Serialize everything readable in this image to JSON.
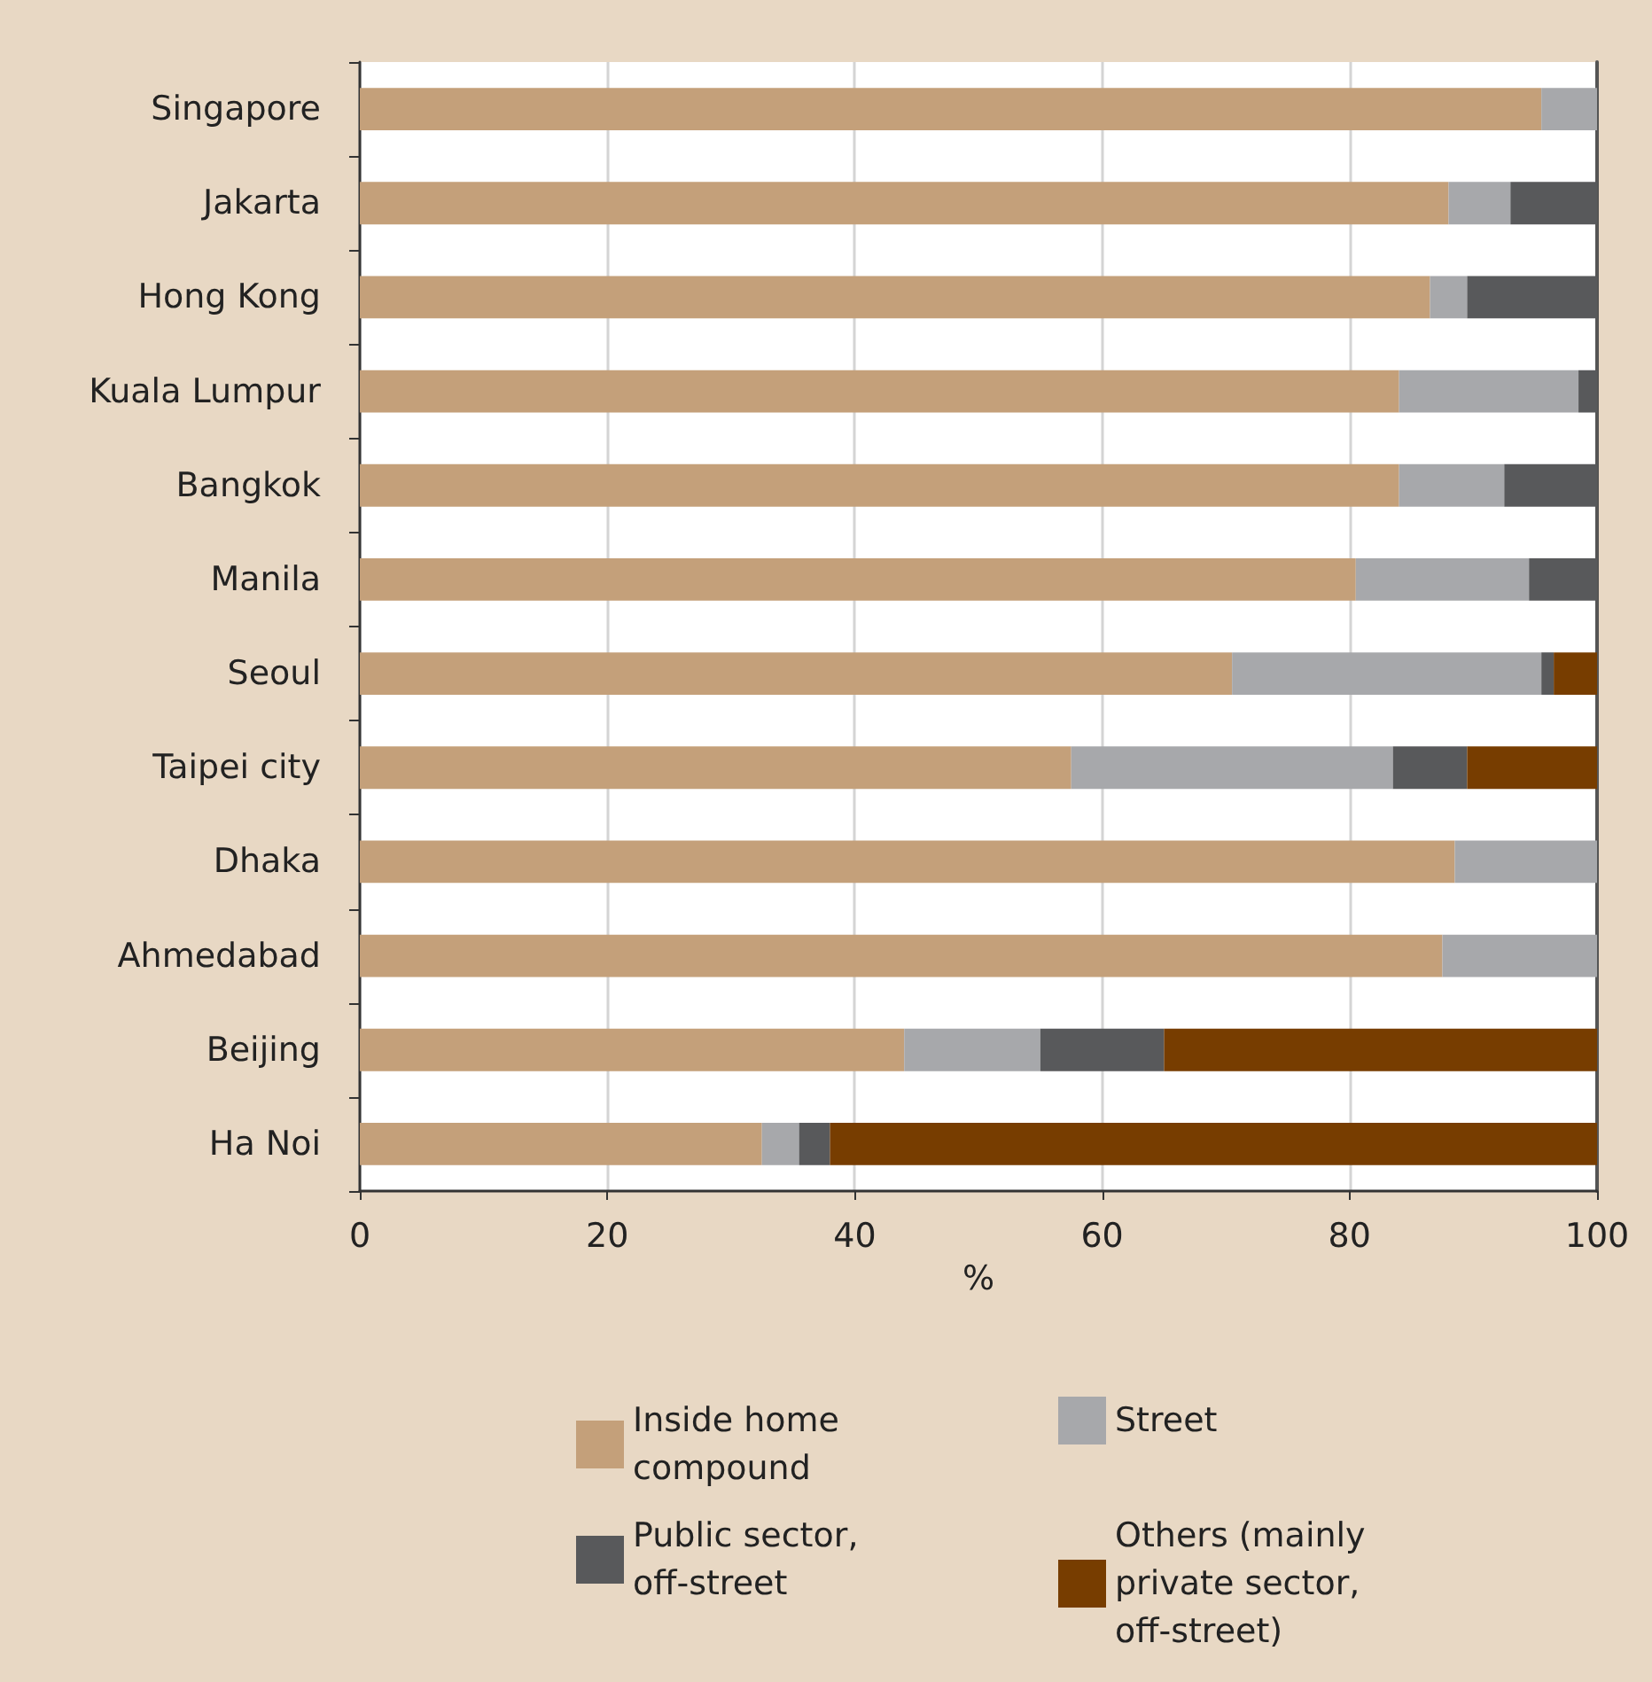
{
  "chart_data": {
    "type": "bar",
    "orientation": "horizontal",
    "stacked": true,
    "xlabel": "%",
    "categories": [
      "Singapore",
      "Jakarta",
      "Hong Kong",
      "Kuala Lumpur",
      "Bangkok",
      "Manila",
      "Seoul",
      "Taipei city",
      "Dhaka",
      "Ahmedabad",
      "Beijing",
      "Ha Noi"
    ],
    "series": [
      {
        "name": "Inside home compound",
        "color": "#c4a07a",
        "values": [
          95.5,
          88,
          86.5,
          84,
          84,
          80.5,
          70.5,
          57.5,
          88.5,
          87.5,
          44,
          32.5
        ]
      },
      {
        "name": "Street",
        "color": "#a7a8ab",
        "values": [
          4.5,
          5,
          3,
          14.5,
          8.5,
          14,
          25,
          26,
          11.5,
          12.5,
          11,
          3
        ]
      },
      {
        "name": "Public sector, off-street",
        "color": "#58595b",
        "values": [
          0,
          7,
          10.5,
          1.5,
          7.5,
          5.5,
          1,
          6,
          0,
          0,
          10,
          2.5
        ]
      },
      {
        "name": "Others (mainly private sector, off-street)",
        "color": "#773d00",
        "values": [
          0,
          0,
          0,
          0,
          0,
          0,
          3.5,
          10.5,
          0,
          0,
          35,
          62
        ]
      }
    ],
    "xlim": [
      0,
      100
    ],
    "xticks": [
      0,
      20,
      40,
      60,
      80,
      100
    ],
    "grid": "x",
    "legend": "bottom"
  }
}
